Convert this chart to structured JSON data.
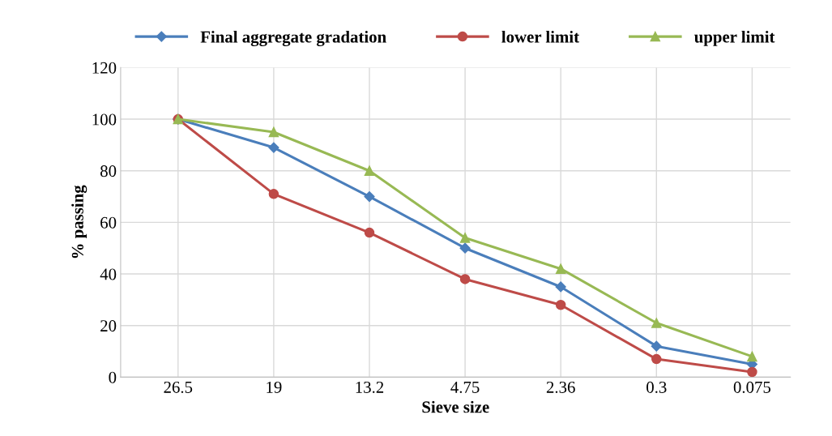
{
  "chart_data": {
    "type": "line",
    "xlabel": "Sieve size",
    "ylabel": "% passing",
    "categories": [
      "26.5",
      "19",
      "13.2",
      "4.75",
      "2.36",
      "0.3",
      "0.075"
    ],
    "series": [
      {
        "name": "Final aggregate gradation",
        "color": "#4a7ebb",
        "marker": "diamond",
        "values": [
          100,
          89,
          70,
          50,
          35,
          12,
          5
        ]
      },
      {
        "name": "lower limit",
        "color": "#be4b48",
        "marker": "circle",
        "values": [
          100,
          71,
          56,
          38,
          28,
          7,
          2
        ]
      },
      {
        "name": "upper limit",
        "color": "#98b954",
        "marker": "triangle",
        "values": [
          100,
          95,
          80,
          54,
          42,
          21,
          8
        ]
      }
    ],
    "ylim": [
      0,
      120
    ],
    "yticks": [
      0,
      20,
      40,
      60,
      80,
      100,
      120
    ],
    "grid": true,
    "legend": "top",
    "line_style": "solid"
  }
}
